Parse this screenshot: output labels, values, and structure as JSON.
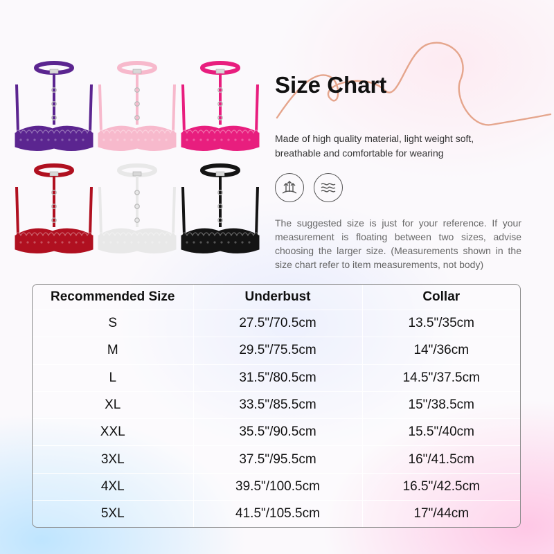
{
  "title": "Size Chart",
  "tagline": "Made of high quality material, light weight soft, breathable and comfortable for wearing",
  "features": [
    {
      "icon": "breathable-fabric-icon"
    },
    {
      "icon": "soft-waves-icon"
    }
  ],
  "note": "The suggested size is just for your reference. If your measurement is floating between two sizes, advise choosing the larger size. (Measurements shown in the size chart refer to item measurements, not body)",
  "product_colors": [
    "#5b2590",
    "#f7b9cc",
    "#e81e7e",
    "#b01020",
    "#e8e8e8",
    "#141414"
  ],
  "table": {
    "headers": [
      "Recommended Size",
      "Underbust",
      "Collar"
    ],
    "rows": [
      [
        "S",
        "27.5\"/70.5cm",
        "13.5\"/35cm"
      ],
      [
        "M",
        "29.5\"/75.5cm",
        "14\"/36cm"
      ],
      [
        "L",
        "31.5\"/80.5cm",
        "14.5\"/37.5cm"
      ],
      [
        "XL",
        "33.5\"/85.5cm",
        "15\"/38.5cm"
      ],
      [
        "XXL",
        "35.5\"/90.5cm",
        "15.5\"/40cm"
      ],
      [
        "3XL",
        "37.5\"/95.5cm",
        "16\"/41.5cm"
      ],
      [
        "4XL",
        "39.5\"/100.5cm",
        "16.5\"/42.5cm"
      ],
      [
        "5XL",
        "41.5\"/105.5cm",
        "17\"/44cm"
      ]
    ]
  }
}
